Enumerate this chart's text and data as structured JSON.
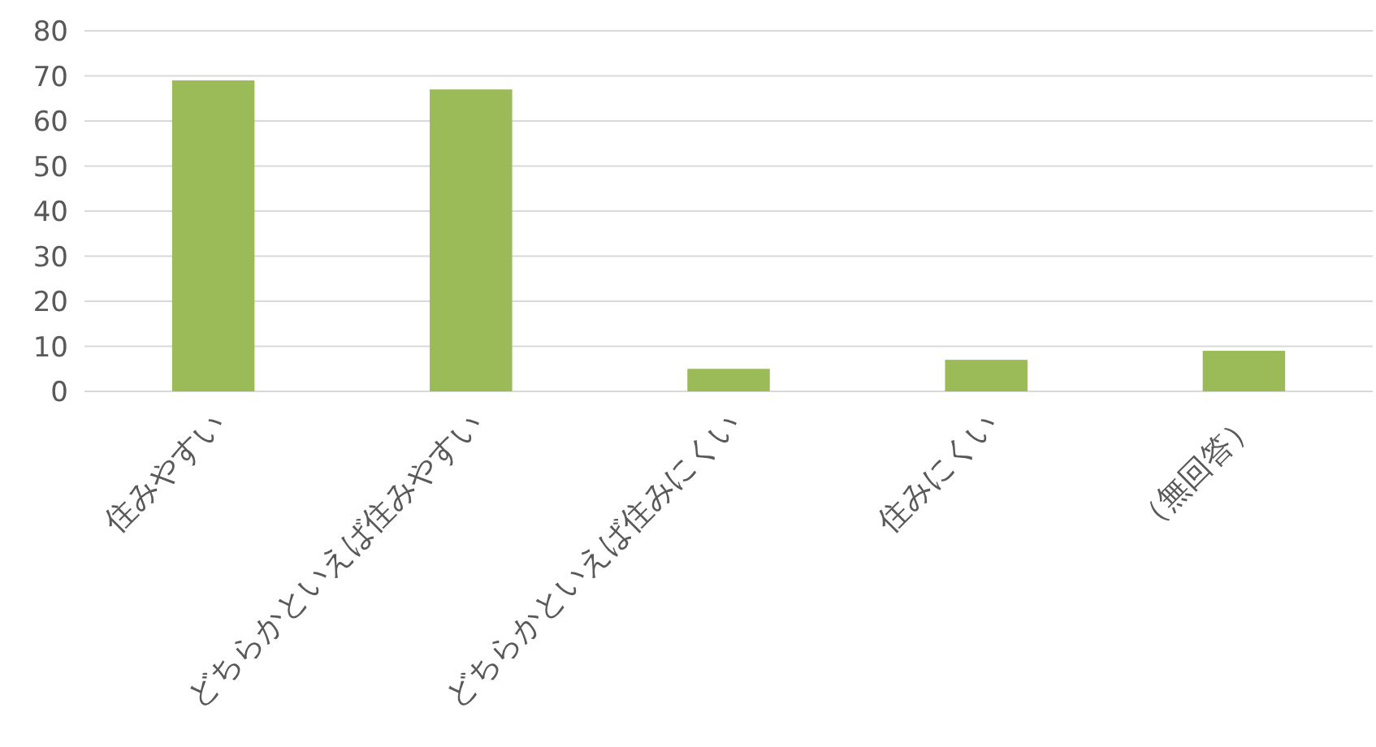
{
  "chart_data": {
    "type": "bar",
    "categories": [
      "住みやすい",
      "どちらかといえば住みやすい",
      "どちらかといえば住みにくい",
      "住みにくい",
      "（無回答）"
    ],
    "values": [
      69,
      67,
      5,
      7,
      9
    ],
    "color": "#9bbb59",
    "ylim": [
      0,
      80
    ],
    "yticks": [
      0,
      10,
      20,
      30,
      40,
      50,
      60,
      70,
      80
    ],
    "grid": "y",
    "legend": false
  }
}
